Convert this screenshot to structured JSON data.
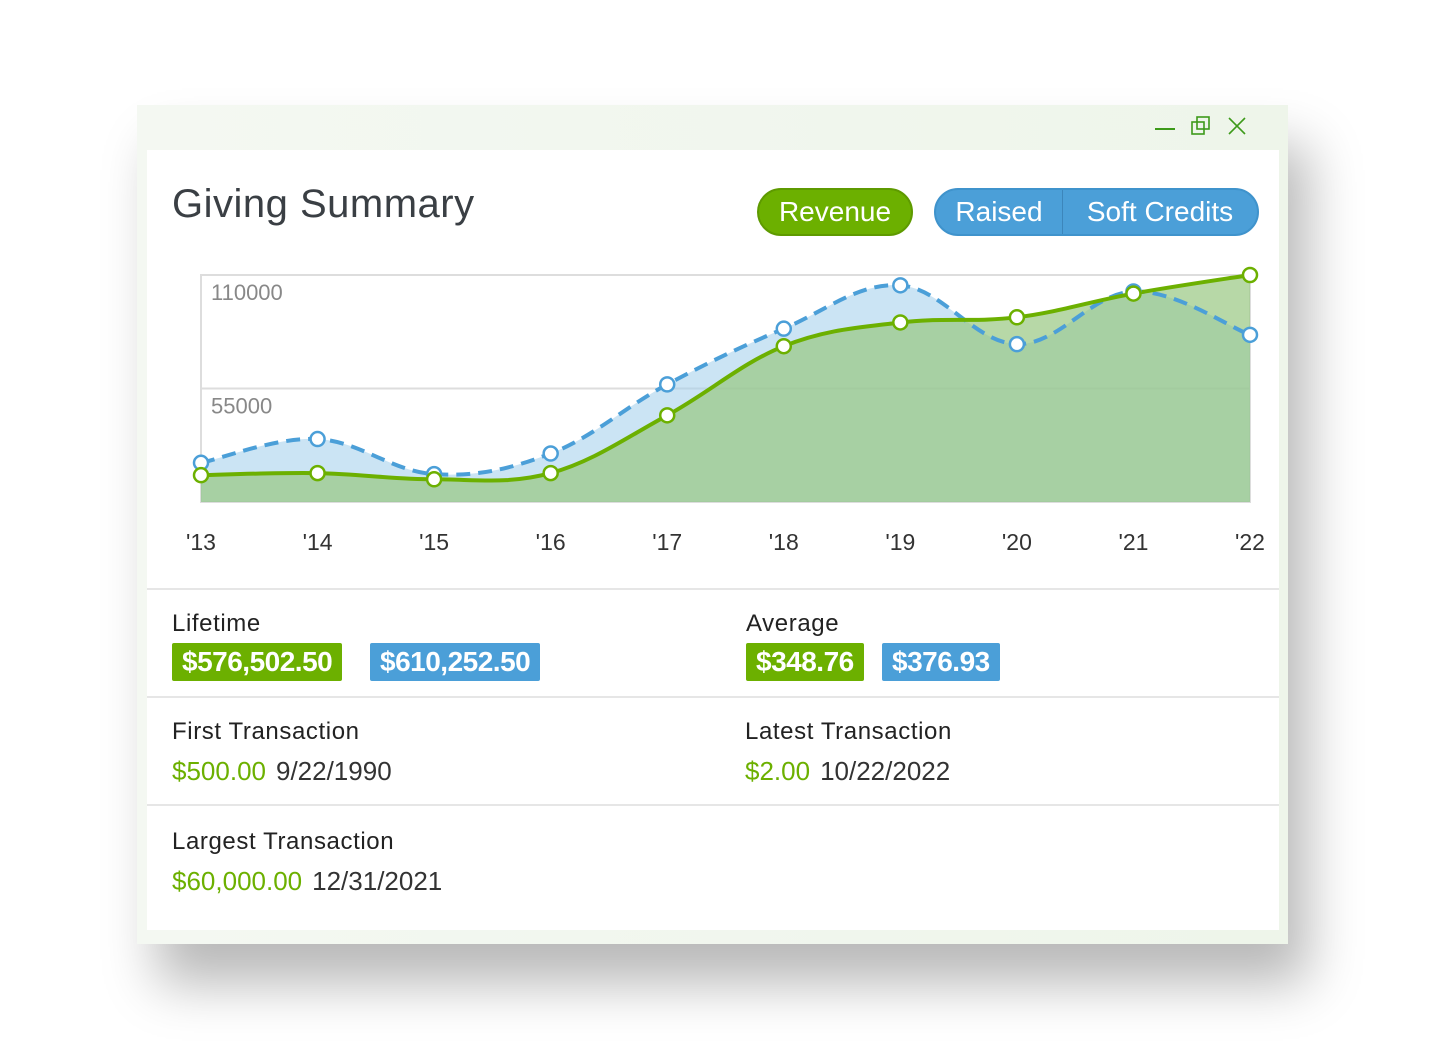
{
  "window": {
    "controls": [
      "minimize-icon",
      "restore-icon",
      "close-icon"
    ]
  },
  "header": {
    "title": "Giving Summary",
    "revenue_label": "Revenue",
    "raised_label": "Raised",
    "soft_credits_label": "Soft Credits"
  },
  "colors": {
    "green": "#6cb000",
    "blue": "#4b9fd8"
  },
  "chart_data": {
    "type": "area",
    "categories": [
      "'13",
      "'14",
      "'15",
      "'16",
      "'17",
      "'18",
      "'19",
      "'20",
      "'21",
      "'22"
    ],
    "ylim": [
      0,
      110000
    ],
    "yticks": [
      "110000",
      "55000"
    ],
    "series": [
      {
        "name": "Revenue",
        "style": "solid",
        "color": "#6cb000",
        "values": [
          13000,
          14000,
          11000,
          14000,
          42000,
          75500,
          87000,
          89500,
          101000,
          110000
        ]
      },
      {
        "name": "Raised",
        "style": "dashed",
        "color": "#4b9fd8",
        "values": [
          19000,
          30500,
          13500,
          23500,
          57000,
          84000,
          105000,
          76500,
          102000,
          81000
        ]
      }
    ]
  },
  "stats": {
    "lifetime": {
      "label": "Lifetime",
      "revenue": "$576,502.50",
      "raised": "$610,252.50"
    },
    "average": {
      "label": "Average",
      "revenue": "$348.76",
      "raised": "$376.93"
    },
    "first": {
      "label": "First Transaction",
      "amount": "$500.00",
      "date": "9/22/1990"
    },
    "latest": {
      "label": "Latest Transaction",
      "amount": "$2.00",
      "date": "10/22/2022"
    },
    "largest": {
      "label": "Largest Transaction",
      "amount": "$60,000.00",
      "date": "12/31/2021"
    }
  }
}
